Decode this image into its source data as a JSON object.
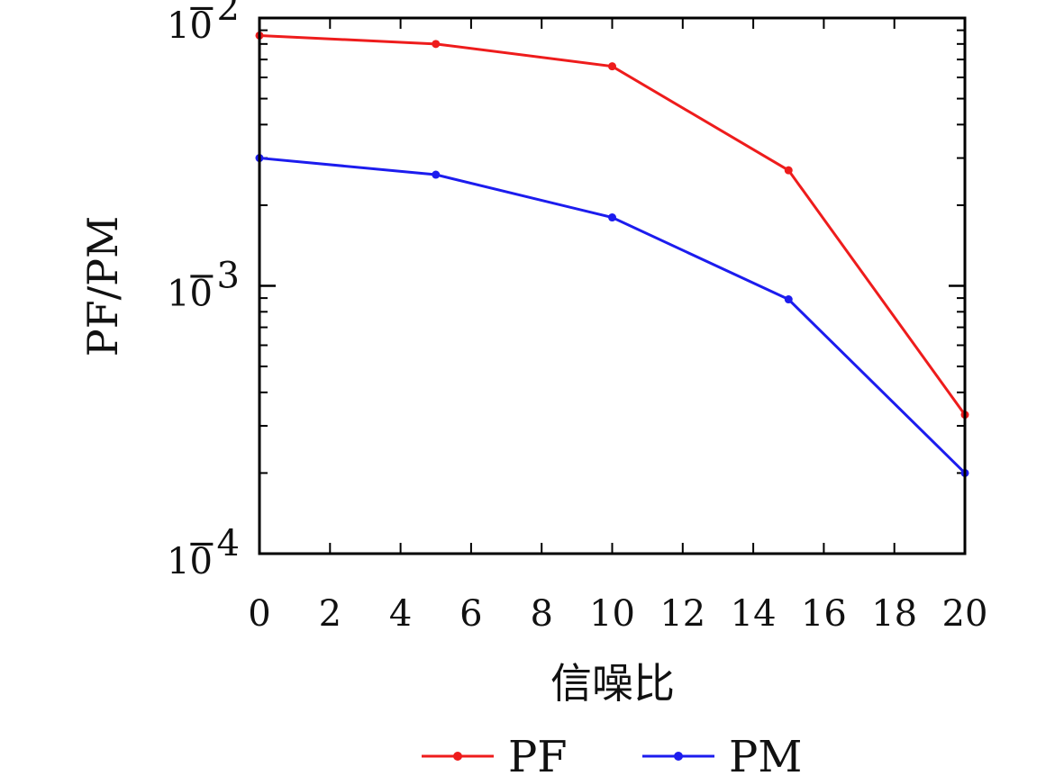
{
  "chart_data": {
    "type": "line",
    "x_axis": {
      "label": "信噪比",
      "ticks": [
        "0",
        "2",
        "4",
        "6",
        "8",
        "10",
        "12",
        "14",
        "16",
        "18",
        "20"
      ],
      "range": [
        0,
        20
      ]
    },
    "y_axis": {
      "label": "PF/PM",
      "scale": "log",
      "range": [
        0.0001,
        0.01
      ],
      "ticks": [
        {
          "value": 0.01,
          "base": "10",
          "exp": "−2"
        },
        {
          "value": 0.001,
          "base": "10",
          "exp": "−3"
        },
        {
          "value": 0.0001,
          "base": "10",
          "exp": "−4"
        }
      ]
    },
    "grid": false,
    "legend": {
      "position": "bottom"
    },
    "x": [
      0,
      5,
      10,
      15,
      20
    ],
    "series": [
      {
        "name": "PF",
        "color": "#ee1c1c",
        "values": [
          0.0086,
          0.008,
          0.0066,
          0.0027,
          0.00033
        ]
      },
      {
        "name": "PM",
        "color": "#1c1cee",
        "values": [
          0.003,
          0.0026,
          0.0018,
          0.00089,
          0.0002
        ]
      }
    ]
  }
}
